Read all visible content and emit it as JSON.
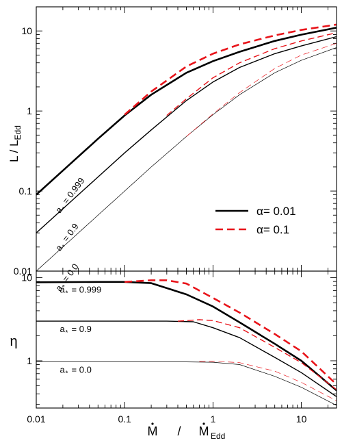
{
  "chart_data": [
    {
      "type": "line",
      "panel": "top",
      "xscale": "log",
      "yscale": "log",
      "xlim": [
        0.01,
        25
      ],
      "ylim": [
        0.01,
        20
      ],
      "ylabel": "L / L_Edd",
      "ytick_labels": [
        "0.01",
        "0.1",
        "1",
        "10"
      ],
      "yticks": [
        0.01,
        0.1,
        1,
        10
      ],
      "legend": {
        "placement": "bottom-right",
        "entries": [
          {
            "label": "α= 0.01",
            "style": "solid",
            "color": "#000000"
          },
          {
            "label": "α= 0.1",
            "style": "dashed",
            "color": "#e8141a"
          }
        ]
      },
      "annotations": [
        {
          "label": "a* = 0.999",
          "text": "= 0.999"
        },
        {
          "label": "a* = 0.9",
          "text": "= 0.9"
        },
        {
          "label": "a* = 0.0",
          "text": "= 0.0"
        }
      ],
      "series": [
        {
          "spin": "0.999",
          "alpha": "0.01",
          "style": "solid",
          "color": "#000000",
          "width": "thick",
          "x": [
            0.01,
            0.02,
            0.05,
            0.1,
            0.2,
            0.5,
            1,
            2,
            5,
            10,
            25
          ],
          "y": [
            0.09,
            0.18,
            0.45,
            0.88,
            1.6,
            3.0,
            4.2,
            5.5,
            7.5,
            9.0,
            11.0
          ]
        },
        {
          "spin": "0.999",
          "alpha": "0.1",
          "style": "dashed",
          "color": "#e8141a",
          "width": "thick",
          "x": [
            0.1,
            0.2,
            0.5,
            1,
            2,
            5,
            10,
            25
          ],
          "y": [
            0.9,
            1.75,
            3.6,
            5.2,
            6.8,
            8.8,
            10.3,
            12.0
          ]
        },
        {
          "spin": "0.9",
          "alpha": "0.01",
          "style": "solid",
          "color": "#000000",
          "width": "medium",
          "x": [
            0.01,
            0.02,
            0.05,
            0.1,
            0.2,
            0.5,
            1,
            2,
            5,
            10,
            25
          ],
          "y": [
            0.03,
            0.06,
            0.15,
            0.3,
            0.58,
            1.35,
            2.3,
            3.5,
            5.2,
            6.5,
            8.5
          ]
        },
        {
          "spin": "0.9",
          "alpha": "0.1",
          "style": "dashed",
          "color": "#e8141a",
          "width": "medium",
          "x": [
            0.3,
            0.5,
            1,
            2,
            5,
            10,
            25
          ],
          "y": [
            0.88,
            1.42,
            2.6,
            4.0,
            6.0,
            7.5,
            9.5
          ]
        },
        {
          "spin": "0.0",
          "alpha": "0.01",
          "style": "solid",
          "color": "#000000",
          "width": "thin",
          "x": [
            0.01,
            0.02,
            0.05,
            0.1,
            0.2,
            0.5,
            1,
            2,
            5,
            10,
            25
          ],
          "y": [
            0.01,
            0.02,
            0.05,
            0.1,
            0.2,
            0.48,
            0.9,
            1.6,
            3.0,
            4.3,
            6.2
          ]
        },
        {
          "spin": "0.0",
          "alpha": "0.1",
          "style": "dashed",
          "color": "#e8141a",
          "width": "thin",
          "x": [
            0.5,
            1,
            2,
            5,
            10,
            25
          ],
          "y": [
            0.48,
            0.92,
            1.7,
            3.4,
            5.0,
            7.0
          ]
        }
      ]
    },
    {
      "type": "line",
      "panel": "bottom",
      "xscale": "log",
      "yscale": "log",
      "xlim": [
        0.01,
        25
      ],
      "ylim": [
        0.27,
        12
      ],
      "xlabel": "Ṁ / Ṁ_Edd",
      "ylabel": "η",
      "xtick_labels": [
        "0.01",
        "0.1",
        "1",
        "10"
      ],
      "xticks": [
        0.01,
        0.1,
        1,
        10
      ],
      "ytick_labels": [
        "1",
        "10"
      ],
      "yticks": [
        1,
        10
      ],
      "annotations": [
        {
          "label": "a* = 0.999",
          "text": "= 0.999"
        },
        {
          "label": "a* = 0.9",
          "text": "= 0.9"
        },
        {
          "label": "a* = 0.0",
          "text": "= 0.0"
        }
      ],
      "series": [
        {
          "spin": "0.999",
          "alpha": "0.01",
          "style": "solid",
          "color": "#000000",
          "width": "thick",
          "x": [
            0.01,
            0.05,
            0.1,
            0.2,
            0.5,
            1,
            2,
            5,
            10,
            25
          ],
          "y": [
            8.8,
            8.9,
            8.9,
            8.6,
            6.3,
            4.5,
            2.9,
            1.6,
            1.0,
            0.44
          ]
        },
        {
          "spin": "0.999",
          "alpha": "0.1",
          "style": "dashed",
          "color": "#e8141a",
          "width": "thick",
          "x": [
            0.1,
            0.2,
            0.3,
            0.5,
            1,
            2,
            5,
            10,
            25
          ],
          "y": [
            8.9,
            9.3,
            9.3,
            8.5,
            5.7,
            3.8,
            2.1,
            1.3,
            0.52
          ]
        },
        {
          "spin": "0.9",
          "alpha": "0.01",
          "style": "solid",
          "color": "#000000",
          "width": "medium",
          "x": [
            0.01,
            0.1,
            0.3,
            0.6,
            1,
            2,
            5,
            10,
            25
          ],
          "y": [
            3.0,
            3.0,
            3.0,
            2.95,
            2.5,
            1.9,
            1.1,
            0.72,
            0.37
          ]
        },
        {
          "spin": "0.9",
          "alpha": "0.1",
          "style": "dashed",
          "color": "#e8141a",
          "width": "medium",
          "x": [
            0.4,
            0.7,
            1,
            2,
            5,
            10,
            25
          ],
          "y": [
            3.0,
            3.12,
            3.05,
            2.5,
            1.45,
            0.95,
            0.45
          ]
        },
        {
          "spin": "0.0",
          "alpha": "0.01",
          "style": "solid",
          "color": "#000000",
          "width": "thin",
          "x": [
            0.01,
            0.1,
            0.5,
            1,
            2,
            5,
            10,
            25
          ],
          "y": [
            0.97,
            0.97,
            0.97,
            0.96,
            0.9,
            0.65,
            0.48,
            0.29
          ]
        },
        {
          "spin": "0.0",
          "alpha": "0.1",
          "style": "dashed",
          "color": "#e8141a",
          "width": "thin",
          "x": [
            0.7,
            1,
            2,
            5,
            10,
            25
          ],
          "y": [
            0.98,
            0.99,
            0.95,
            0.75,
            0.55,
            0.33
          ]
        }
      ]
    }
  ]
}
